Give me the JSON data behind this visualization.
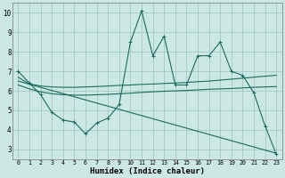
{
  "background_color": "#cce8e4",
  "grid_color": "#aaccc8",
  "line_color": "#1a6b5e",
  "x_label": "Humidex (Indice chaleur)",
  "xlim": [
    -0.5,
    23.5
  ],
  "ylim": [
    2.5,
    10.5
  ],
  "yticks": [
    3,
    4,
    5,
    6,
    7,
    8,
    9,
    10
  ],
  "xticks": [
    0,
    1,
    2,
    3,
    4,
    5,
    6,
    7,
    8,
    9,
    10,
    11,
    12,
    13,
    14,
    15,
    16,
    17,
    18,
    19,
    20,
    21,
    22,
    23
  ],
  "series1_x": [
    0,
    1,
    2,
    3,
    4,
    5,
    6,
    7,
    8,
    9,
    10,
    11,
    12,
    13,
    14,
    15,
    16,
    17,
    18,
    19,
    20,
    21,
    22,
    23
  ],
  "series1_y": [
    7.0,
    6.4,
    5.8,
    4.9,
    4.5,
    4.4,
    3.8,
    4.35,
    4.6,
    5.3,
    8.5,
    10.1,
    7.8,
    8.8,
    6.3,
    6.3,
    7.8,
    7.8,
    8.5,
    7.0,
    6.8,
    5.9,
    4.2,
    2.75
  ],
  "series2_x": [
    0,
    1,
    2,
    3,
    4,
    5,
    6,
    7,
    8,
    9,
    10,
    11,
    12,
    13,
    14,
    15,
    16,
    17,
    18,
    19,
    20,
    21,
    22,
    23
  ],
  "series2_y": [
    6.7,
    6.35,
    6.25,
    6.2,
    6.18,
    6.18,
    6.2,
    6.22,
    6.25,
    6.28,
    6.3,
    6.33,
    6.35,
    6.38,
    6.4,
    6.43,
    6.47,
    6.5,
    6.55,
    6.6,
    6.65,
    6.7,
    6.75,
    6.8
  ],
  "series3_x": [
    0,
    1,
    2,
    3,
    4,
    5,
    6,
    7,
    8,
    9,
    10,
    11,
    12,
    13,
    14,
    15,
    16,
    17,
    18,
    19,
    20,
    21,
    22,
    23
  ],
  "series3_y": [
    6.3,
    6.1,
    5.95,
    5.85,
    5.8,
    5.78,
    5.78,
    5.8,
    5.82,
    5.85,
    5.88,
    5.92,
    5.95,
    5.98,
    6.0,
    6.02,
    6.05,
    6.08,
    6.1,
    6.12,
    6.15,
    6.18,
    6.2,
    6.22
  ],
  "series4_x": [
    0,
    23
  ],
  "series4_y": [
    6.5,
    2.8
  ]
}
